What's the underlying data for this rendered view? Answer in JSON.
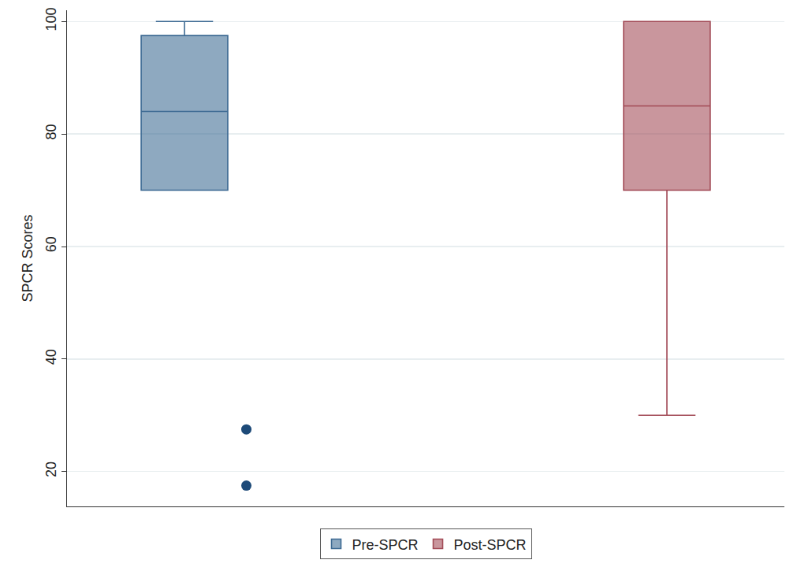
{
  "chart_data": {
    "type": "box",
    "y_label": "SPCR Scores",
    "categories": [
      "Pre-SPCR",
      "Post-SPCR"
    ],
    "series": [
      {
        "name": "Pre-SPCR",
        "color": "#3d6a93",
        "q1": 70,
        "median": 84,
        "q3": 97.5,
        "lowerfence": 70,
        "upperfence": 100,
        "outliers": [
          27.5,
          17.5
        ]
      },
      {
        "name": "Post-SPCR",
        "color": "#a24a56",
        "q1": 70,
        "median": 85,
        "q3": 100,
        "lowerfence": 30,
        "upperfence": 100,
        "outliers": []
      }
    ],
    "ylim": [
      13.8,
      102
    ],
    "yticks": [
      20,
      40,
      60,
      80,
      100
    ],
    "grid": true,
    "legend": "bottom",
    "tick_labels": "y"
  }
}
